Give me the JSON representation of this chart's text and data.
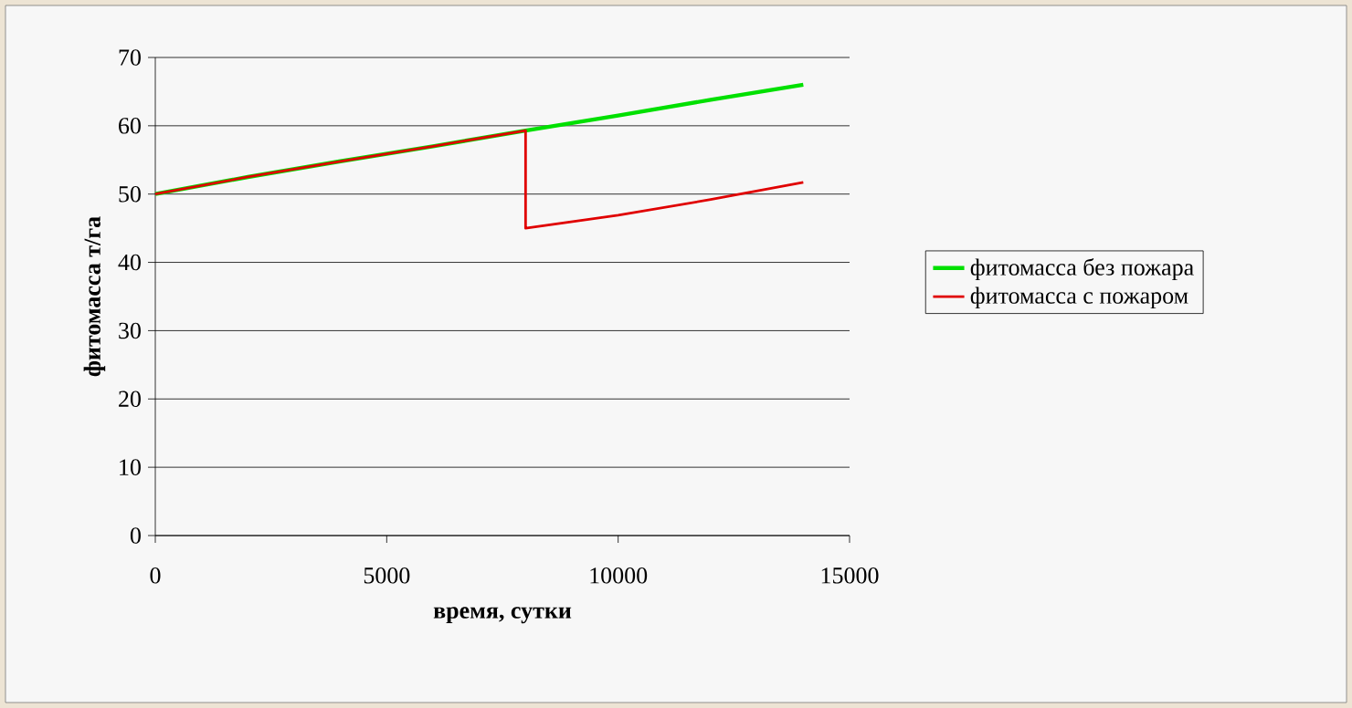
{
  "chart_data": {
    "type": "line",
    "xlabel": "время, сутки",
    "ylabel": "фитомасса т/га",
    "xlim": [
      0,
      15000
    ],
    "ylim": [
      0,
      70
    ],
    "xticks": [
      0,
      5000,
      10000,
      15000
    ],
    "yticks": [
      0,
      10,
      20,
      30,
      40,
      50,
      60,
      70
    ],
    "grid": "y",
    "legend": "right",
    "marker": "none",
    "line_style": "solid",
    "series": [
      {
        "name": "фитомасса без пожара",
        "color": "#00e000",
        "x": [
          0,
          2000,
          4000,
          6000,
          8000,
          10000,
          12000,
          14000
        ],
        "values": [
          50,
          52.5,
          54.8,
          57,
          59.3,
          61.5,
          63.8,
          66
        ]
      },
      {
        "name": "фитомасса с пожаром",
        "color": "#e00000",
        "x": [
          0,
          2000,
          4000,
          6000,
          8000,
          8000,
          10000,
          12000,
          14000
        ],
        "values": [
          50,
          52.5,
          54.8,
          57,
          59.3,
          45,
          46.9,
          49.2,
          51.7
        ]
      }
    ]
  }
}
